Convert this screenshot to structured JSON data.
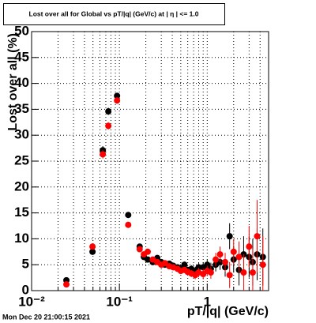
{
  "chart_data": {
    "type": "scatter",
    "title": "Lost over all for Global vs pT/|q| (GeV/c) at | η | <= 1.0",
    "x_label": "pT/|q| (GeV/c)",
    "y_label": "Lost over all (%)",
    "timestamp": "Mon Dec 20 21:00:15 2021",
    "log_x": true,
    "grid": true,
    "xlim": [
      0.01,
      5
    ],
    "ylim": [
      0,
      50
    ],
    "xticks": [
      {
        "value": 0.01,
        "label": "10⁻²"
      },
      {
        "value": 0.1,
        "label": "10⁻¹"
      },
      1
    ],
    "x_minor_ticks": [
      0.02,
      0.03,
      0.04,
      0.05,
      0.06,
      0.07,
      0.08,
      0.09,
      0.2,
      0.3,
      0.4,
      0.5,
      0.6,
      0.7,
      0.8,
      0.9,
      2,
      3,
      4
    ],
    "yticks": [
      0,
      5,
      10,
      15,
      20,
      25,
      30,
      35,
      40,
      45,
      50
    ],
    "series": [
      {
        "color": "#000000",
        "x": [
          0.0249,
          0.0494,
          0.0647,
          0.0748,
          0.094,
          0.126,
          0.17,
          0.19,
          0.21,
          0.24,
          0.27,
          0.3,
          0.33,
          0.37,
          0.41,
          0.46,
          0.5,
          0.55,
          0.6,
          0.66,
          0.73,
          0.8,
          0.9,
          1.0,
          1.1,
          1.25,
          1.4,
          1.6,
          1.8,
          2.0,
          2.3,
          2.6,
          3.0,
          3.3,
          3.7,
          4.3
        ],
        "values": [
          2.0,
          7.5,
          27.1,
          34.6,
          37.6,
          14.6,
          8.5,
          6.5,
          6.0,
          5.5,
          6.3,
          5.5,
          5.0,
          5.2,
          4.8,
          4.5,
          4.3,
          5.0,
          4.0,
          4.2,
          3.8,
          4.5,
          4.5,
          5.0,
          4.2,
          5.0,
          5.5,
          4.5,
          10.5,
          6.0,
          4.0,
          7.0,
          6.5,
          5.5,
          7.0,
          6.5
        ],
        "errors": [
          0.3,
          0.6,
          0.8,
          0.7,
          0.6,
          0.5,
          0.5,
          0.5,
          0.5,
          0.5,
          0.5,
          0.5,
          0.5,
          0.5,
          0.5,
          0.5,
          0.6,
          0.6,
          0.6,
          0.7,
          0.8,
          0.9,
          1.0,
          1.0,
          1.2,
          1.3,
          1.5,
          1.8,
          2.5,
          2.5,
          3.0,
          3.5,
          4.0,
          4.5,
          5.0,
          5.5
        ]
      },
      {
        "color": "#ff0000",
        "x": [
          0.0249,
          0.0494,
          0.0647,
          0.0748,
          0.094,
          0.126,
          0.17,
          0.19,
          0.21,
          0.24,
          0.27,
          0.3,
          0.33,
          0.37,
          0.41,
          0.46,
          0.5,
          0.55,
          0.6,
          0.66,
          0.73,
          0.8,
          0.9,
          1.0,
          1.1,
          1.25,
          1.4,
          1.6,
          1.8,
          2.0,
          2.3,
          2.6,
          3.0,
          3.3,
          3.7,
          4.3
        ],
        "values": [
          1.2,
          8.5,
          26.3,
          31.8,
          36.7,
          12.7,
          8.0,
          7.0,
          7.5,
          6.0,
          5.5,
          5.0,
          5.3,
          4.7,
          4.5,
          4.2,
          3.8,
          4.0,
          3.6,
          3.3,
          3.0,
          3.5,
          3.2,
          3.8,
          3.5,
          6.0,
          7.0,
          5.5,
          3.0,
          7.5,
          6.5,
          3.5,
          8.5,
          3.5,
          10.5,
          5.0
        ],
        "errors": [
          0.3,
          0.6,
          0.8,
          0.7,
          0.6,
          0.5,
          0.5,
          0.5,
          0.5,
          0.5,
          0.5,
          0.5,
          0.5,
          0.5,
          0.5,
          0.5,
          0.6,
          0.6,
          0.6,
          0.7,
          0.8,
          0.9,
          1.0,
          1.0,
          1.2,
          1.3,
          1.5,
          1.8,
          2.5,
          2.5,
          3.0,
          3.5,
          4.0,
          4.5,
          7.0,
          5.5
        ]
      }
    ]
  }
}
